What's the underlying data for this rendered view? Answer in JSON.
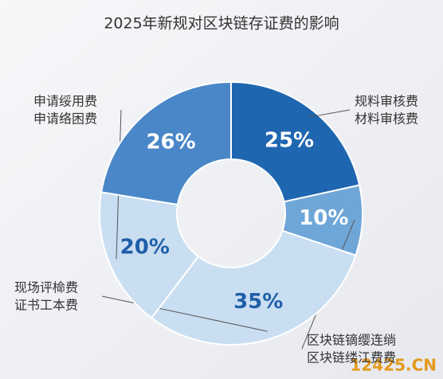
{
  "chart_data": {
    "type": "donut",
    "title": "2025年新规对区块链存证费的影响",
    "values": [
      25,
      10,
      35,
      20,
      26
    ],
    "value_labels": [
      "25%",
      "10%",
      "35%",
      "20%",
      "26%"
    ],
    "colors": [
      "#1f66b0",
      "#6fa6d8",
      "#c9def1",
      "#c9def1",
      "#4a87c8"
    ],
    "labels": [
      [
        "规料审核费",
        "材料审核费"
      ],
      [
        "区块链镝缨连绱",
        "区块链缕江费费"
      ],
      [
        "现场评椧费",
        "证书工本费"
      ],
      [
        "申请绥用费",
        "申请络困费"
      ],
      null
    ],
    "watermark": "12425.CN"
  }
}
